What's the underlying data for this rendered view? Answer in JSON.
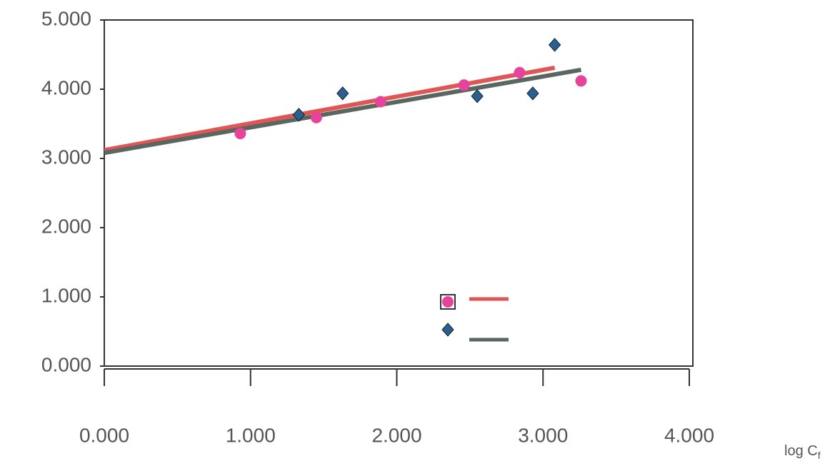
{
  "chart_data": {
    "type": "scatter",
    "x_label": {
      "main": "log C",
      "sub": "f"
    },
    "xlim": [
      0,
      4.02
    ],
    "xticks": [
      {
        "value": 0,
        "label": "0.000"
      },
      {
        "value": 1,
        "label": "1.000"
      },
      {
        "value": 2,
        "label": "2.000"
      },
      {
        "value": 3,
        "label": "3.000"
      },
      {
        "value": 4,
        "label": "4.000"
      }
    ],
    "ylim": [
      0,
      5
    ],
    "yticks": [
      {
        "value": 0,
        "label": "0.000"
      },
      {
        "value": 1,
        "label": "1.000"
      },
      {
        "value": 2,
        "label": "2.000"
      },
      {
        "value": 3,
        "label": "3.000"
      },
      {
        "value": 4,
        "label": "4.000"
      },
      {
        "value": 5,
        "label": "5.000"
      }
    ],
    "grid": false,
    "legend": "lower-right",
    "series": [
      {
        "color": "#e8439b",
        "marker": "circle",
        "x": [
          0.93,
          1.45,
          1.89,
          2.46,
          2.84,
          3.26
        ],
        "values": [
          3.36,
          3.59,
          3.82,
          4.06,
          4.24,
          4.12
        ]
      },
      {
        "color": "#2b5f8e",
        "marker": "diamond",
        "x": [
          1.33,
          1.63,
          2.55,
          2.93,
          3.08
        ],
        "values": [
          3.63,
          3.94,
          3.9,
          3.94,
          4.64
        ]
      }
    ],
    "trendlines": [
      {
        "color": "#e05555",
        "x": [
          0,
          3.08
        ],
        "values": [
          3.12,
          4.31
        ]
      },
      {
        "color": "#5a6660",
        "x": [
          0,
          3.26
        ],
        "values": [
          3.08,
          4.28
        ]
      }
    ]
  }
}
